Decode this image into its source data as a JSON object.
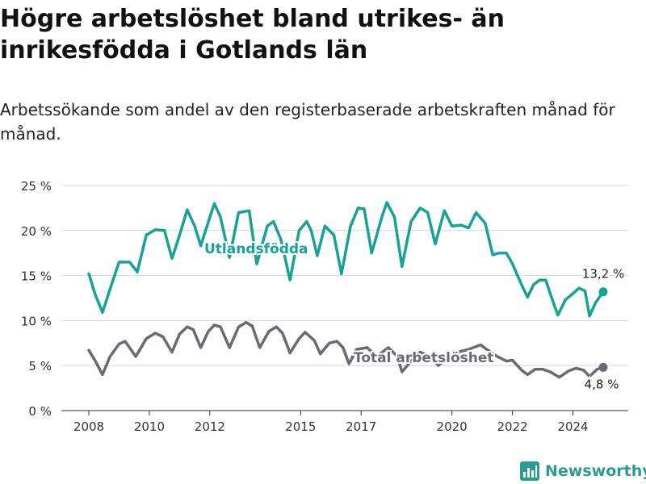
{
  "title": "Högre arbetslöshet bland utrikes- än inrikesfödda i Gotlands län",
  "subtitle": "Arbetssökande som andel av den registerbaserade arbetskraften månad för månad.",
  "brand": {
    "name": "Newsworthy",
    "color": "#2a9d8f",
    "icon": "bar-chart-logo-icon"
  },
  "chart_data": {
    "type": "line",
    "y_ticks": [
      "0 %",
      "5 %",
      "10 %",
      "15 %",
      "20 %",
      "25 %"
    ],
    "y_tick_values": [
      0,
      5,
      10,
      15,
      20,
      25
    ],
    "x_ticks": [
      "2008",
      "2010",
      "2012",
      "2015",
      "2017",
      "2020",
      "2022",
      "2024"
    ],
    "x_tick_values": [
      2008,
      2010,
      2012,
      2015,
      2017,
      2020,
      2022,
      2024
    ],
    "ylim": [
      0,
      25
    ],
    "xlim": [
      2008,
      2025
    ],
    "grid": "horizontal",
    "series": [
      {
        "name": "Utlandsfödda",
        "color": "#16a295",
        "end_label": "13,2 %",
        "points": [
          [
            2008.0,
            15.2
          ],
          [
            2008.2,
            13.0
          ],
          [
            2008.45,
            10.9
          ],
          [
            2008.75,
            14.0
          ],
          [
            2009.0,
            16.5
          ],
          [
            2009.35,
            16.5
          ],
          [
            2009.6,
            15.4
          ],
          [
            2009.9,
            19.5
          ],
          [
            2010.2,
            20.1
          ],
          [
            2010.5,
            20.0
          ],
          [
            2010.75,
            16.9
          ],
          [
            2011.0,
            19.5
          ],
          [
            2011.25,
            22.3
          ],
          [
            2011.5,
            20.5
          ],
          [
            2011.7,
            18.3
          ],
          [
            2012.0,
            21.5
          ],
          [
            2012.15,
            23.0
          ],
          [
            2012.35,
            21.5
          ],
          [
            2012.65,
            17.0
          ],
          [
            2012.95,
            22.0
          ],
          [
            2013.3,
            22.2
          ],
          [
            2013.55,
            16.3
          ],
          [
            2013.9,
            20.5
          ],
          [
            2014.1,
            21.0
          ],
          [
            2014.35,
            19.0
          ],
          [
            2014.65,
            14.5
          ],
          [
            2014.95,
            20.0
          ],
          [
            2015.2,
            21.0
          ],
          [
            2015.35,
            20.0
          ],
          [
            2015.55,
            17.2
          ],
          [
            2015.8,
            20.5
          ],
          [
            2016.1,
            19.5
          ],
          [
            2016.35,
            15.2
          ],
          [
            2016.65,
            20.5
          ],
          [
            2016.9,
            22.5
          ],
          [
            2017.1,
            22.4
          ],
          [
            2017.35,
            17.5
          ],
          [
            2017.7,
            21.7
          ],
          [
            2017.85,
            23.1
          ],
          [
            2018.1,
            21.5
          ],
          [
            2018.35,
            16.0
          ],
          [
            2018.65,
            21.0
          ],
          [
            2018.95,
            22.5
          ],
          [
            2019.2,
            22.0
          ],
          [
            2019.45,
            18.5
          ],
          [
            2019.75,
            22.2
          ],
          [
            2020.0,
            20.5
          ],
          [
            2020.3,
            20.6
          ],
          [
            2020.55,
            20.3
          ],
          [
            2020.8,
            22.0
          ],
          [
            2021.1,
            20.8
          ],
          [
            2021.35,
            17.3
          ],
          [
            2021.55,
            17.5
          ],
          [
            2021.8,
            17.5
          ],
          [
            2022.0,
            16.3
          ],
          [
            2022.3,
            14.0
          ],
          [
            2022.5,
            12.6
          ],
          [
            2022.7,
            14.0
          ],
          [
            2022.9,
            14.5
          ],
          [
            2023.1,
            14.5
          ],
          [
            2023.3,
            12.5
          ],
          [
            2023.5,
            10.6
          ],
          [
            2023.75,
            12.3
          ],
          [
            2024.0,
            13.0
          ],
          [
            2024.2,
            13.6
          ],
          [
            2024.4,
            13.3
          ],
          [
            2024.55,
            10.5
          ],
          [
            2024.75,
            12.0
          ],
          [
            2025.0,
            13.2
          ]
        ]
      },
      {
        "name": "Total arbetslöshet",
        "color": "#6a6a72",
        "end_label": "4,8 %",
        "points": [
          [
            2008.0,
            6.7
          ],
          [
            2008.2,
            5.6
          ],
          [
            2008.45,
            4.0
          ],
          [
            2008.7,
            6.0
          ],
          [
            2009.0,
            7.4
          ],
          [
            2009.2,
            7.7
          ],
          [
            2009.55,
            6.0
          ],
          [
            2009.9,
            8.0
          ],
          [
            2010.2,
            8.6
          ],
          [
            2010.45,
            8.2
          ],
          [
            2010.75,
            6.5
          ],
          [
            2011.0,
            8.5
          ],
          [
            2011.25,
            9.3
          ],
          [
            2011.45,
            9.0
          ],
          [
            2011.7,
            7.0
          ],
          [
            2011.95,
            8.8
          ],
          [
            2012.15,
            9.5
          ],
          [
            2012.35,
            9.3
          ],
          [
            2012.65,
            7.0
          ],
          [
            2012.95,
            9.3
          ],
          [
            2013.2,
            9.8
          ],
          [
            2013.4,
            9.4
          ],
          [
            2013.65,
            7.0
          ],
          [
            2013.95,
            8.8
          ],
          [
            2014.2,
            9.3
          ],
          [
            2014.4,
            8.6
          ],
          [
            2014.65,
            6.4
          ],
          [
            2014.95,
            8.0
          ],
          [
            2015.15,
            8.7
          ],
          [
            2015.45,
            7.8
          ],
          [
            2015.65,
            6.3
          ],
          [
            2015.95,
            7.5
          ],
          [
            2016.2,
            7.7
          ],
          [
            2016.4,
            7.0
          ],
          [
            2016.6,
            5.2
          ],
          [
            2016.85,
            6.8
          ],
          [
            2017.2,
            7.0
          ],
          [
            2017.5,
            6.0
          ],
          [
            2017.9,
            7.0
          ],
          [
            2018.2,
            6.0
          ],
          [
            2018.35,
            4.3
          ],
          [
            2018.65,
            5.5
          ],
          [
            2018.95,
            6.5
          ],
          [
            2019.3,
            6.0
          ],
          [
            2019.55,
            5.0
          ],
          [
            2019.9,
            6.0
          ],
          [
            2020.2,
            6.5
          ],
          [
            2020.55,
            6.8
          ],
          [
            2020.95,
            7.3
          ],
          [
            2021.15,
            6.8
          ],
          [
            2021.5,
            6.0
          ],
          [
            2021.8,
            5.5
          ],
          [
            2022.0,
            5.6
          ],
          [
            2022.3,
            4.5
          ],
          [
            2022.5,
            4.0
          ],
          [
            2022.75,
            4.6
          ],
          [
            2023.0,
            4.6
          ],
          [
            2023.25,
            4.3
          ],
          [
            2023.55,
            3.7
          ],
          [
            2023.85,
            4.4
          ],
          [
            2024.1,
            4.7
          ],
          [
            2024.35,
            4.5
          ],
          [
            2024.55,
            3.8
          ],
          [
            2024.8,
            4.6
          ],
          [
            2025.0,
            4.8
          ]
        ]
      }
    ]
  }
}
